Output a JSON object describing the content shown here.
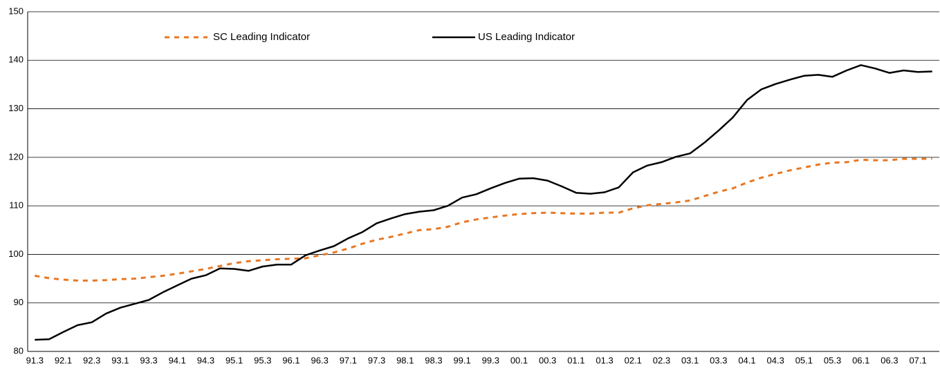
{
  "chart_data": {
    "type": "line",
    "categories": [
      "91.3",
      null,
      "92.1",
      null,
      "92.3",
      null,
      "93.1",
      null,
      "93.3",
      null,
      "94.1",
      null,
      "94.3",
      null,
      "95.1",
      null,
      "95.3",
      null,
      "96.1",
      null,
      "96.3",
      null,
      "97.1",
      null,
      "97.3",
      null,
      "98.1",
      null,
      "98.3",
      null,
      "99.1",
      null,
      "99.3",
      null,
      "00.1",
      null,
      "00.3",
      null,
      "01.1",
      null,
      "01.3",
      null,
      "02.1",
      null,
      "02.3",
      null,
      "03.1",
      null,
      "03.3",
      null,
      "04.1",
      null,
      "04.3",
      null,
      "05.1",
      null,
      "05.3",
      null,
      "06.1",
      null,
      "06.3",
      null,
      "07.1",
      null
    ],
    "series": [
      {
        "name": "SC Leading Indicator",
        "color": "#e87722",
        "dashed": true,
        "values": [
          95.6,
          95.1,
          94.8,
          94.6,
          94.6,
          94.7,
          94.9,
          95.0,
          95.3,
          95.6,
          96.0,
          96.5,
          97.0,
          97.6,
          98.2,
          98.6,
          98.8,
          99.0,
          99.1,
          99.2,
          99.8,
          100.4,
          101.2,
          102.2,
          103.0,
          103.6,
          104.3,
          105.0,
          105.2,
          105.7,
          106.6,
          107.2,
          107.6,
          108.0,
          108.3,
          108.5,
          108.6,
          108.5,
          108.4,
          108.4,
          108.6,
          108.6,
          109.5,
          110.1,
          110.4,
          110.7,
          111.1,
          112.0,
          112.9,
          113.6,
          114.8,
          115.8,
          116.6,
          117.3,
          117.9,
          118.5,
          118.9,
          119.0,
          119.5,
          119.4,
          119.4,
          119.7,
          119.7,
          119.7
        ]
      },
      {
        "name": "US Leading Indicator",
        "color": "#000000",
        "dashed": false,
        "values": [
          82.4,
          82.5,
          84.0,
          85.4,
          86.0,
          87.8,
          89.0,
          89.8,
          90.6,
          92.2,
          93.6,
          95.0,
          95.7,
          97.1,
          97.0,
          96.6,
          97.5,
          97.9,
          97.9,
          99.8,
          100.8,
          101.7,
          103.3,
          104.6,
          106.4,
          107.4,
          108.3,
          108.8,
          109.1,
          110.0,
          111.7,
          112.4,
          113.6,
          114.7,
          115.6,
          115.7,
          115.2,
          114.0,
          112.7,
          112.5,
          112.8,
          113.8,
          116.9,
          118.3,
          119.0,
          120.1,
          120.8,
          123.0,
          125.5,
          128.2,
          131.8,
          134.0,
          135.1,
          136.0,
          136.8,
          137.0,
          136.6,
          137.9,
          139.0,
          138.3,
          137.4,
          137.9,
          137.6,
          137.7
        ]
      }
    ],
    "ylim": [
      80,
      150
    ],
    "yticks": [
      80,
      90,
      100,
      110,
      120,
      130,
      140,
      150
    ],
    "grid": true
  }
}
